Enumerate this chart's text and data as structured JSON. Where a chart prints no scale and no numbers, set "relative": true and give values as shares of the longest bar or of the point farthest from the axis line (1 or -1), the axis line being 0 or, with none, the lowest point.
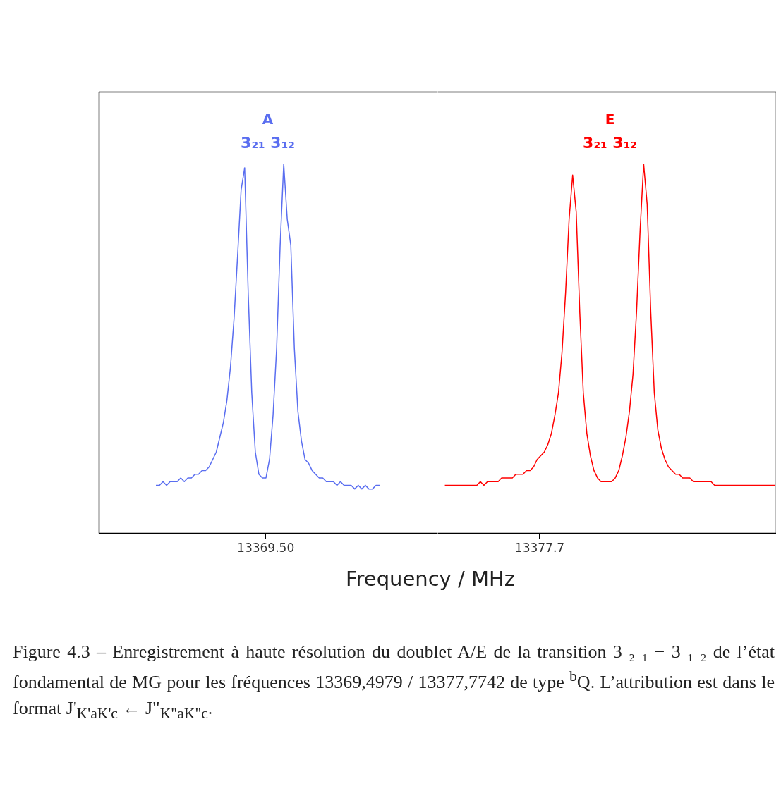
{
  "chart_data": [
    {
      "type": "line",
      "relative": true,
      "xlabel": "Frequency / MHz",
      "marker": "none",
      "line_style": "solid",
      "categories": [
        null,
        null,
        null,
        null,
        null,
        null,
        null,
        null,
        null,
        null,
        null,
        null,
        null,
        null,
        null,
        null,
        null,
        null,
        null,
        null,
        null,
        null,
        null,
        null,
        null,
        null,
        null,
        null,
        null,
        null,
        null,
        null,
        null,
        null,
        null,
        null,
        null,
        null,
        null,
        null,
        null,
        null,
        null,
        null,
        null,
        null,
        null,
        null,
        null,
        null,
        null,
        null,
        null,
        null,
        null,
        null,
        null,
        null,
        null,
        null,
        null,
        null,
        null,
        null
      ],
      "annotations": [
        "A",
        "3₂₁ 3₁₂",
        "13369.50"
      ],
      "series": [
        {
          "color": "#5a6ef0",
          "values": [
            0.13,
            0.13,
            0.14,
            0.13,
            0.14,
            0.14,
            0.14,
            0.15,
            0.14,
            0.15,
            0.15,
            0.16,
            0.16,
            0.17,
            0.17,
            0.18,
            0.2,
            0.22,
            0.26,
            0.3,
            0.36,
            0.45,
            0.58,
            0.75,
            0.93,
            0.99,
            0.65,
            0.38,
            0.22,
            0.16,
            0.15,
            0.15,
            0.2,
            0.32,
            0.5,
            0.78,
            1.0,
            0.85,
            0.78,
            0.5,
            0.33,
            0.25,
            0.2,
            0.19,
            0.17,
            0.16,
            0.15,
            0.15,
            0.14,
            0.14,
            0.14,
            0.13,
            0.14,
            0.13,
            0.13,
            0.13,
            0.12,
            0.13,
            0.12,
            0.13,
            0.12,
            0.12,
            0.13,
            0.13
          ]
        }
      ]
    },
    {
      "type": "line",
      "relative": true,
      "marker": "none",
      "line_style": "solid",
      "categories": [
        null,
        null,
        null,
        null,
        null,
        null,
        null,
        null,
        null,
        null,
        null,
        null,
        null,
        null,
        null,
        null,
        null,
        null,
        null,
        null,
        null,
        null,
        null,
        null,
        null,
        null,
        null,
        null,
        null,
        null,
        null,
        null,
        null,
        null,
        null,
        null,
        null,
        null,
        null,
        null,
        null,
        null,
        null,
        null,
        null,
        null,
        null,
        null,
        null,
        null,
        null,
        null,
        null,
        null,
        null,
        null,
        null,
        null,
        null,
        null,
        null,
        null,
        null,
        null,
        null,
        null,
        null,
        null,
        null,
        null,
        null,
        null,
        null,
        null,
        null,
        null,
        null,
        null,
        null,
        null,
        null,
        null,
        null,
        null,
        null,
        null,
        null,
        null,
        null,
        null,
        null,
        null,
        null,
        null
      ],
      "annotations": [
        "E",
        "3₂₁ 3₁₂",
        "13377.7",
        "Figure 4.3 – Enregistrement à haute résolution du doublet A/E de la transition 3 ₂ ₁ − 3 ₁ ₂ de l’état fondamental de MG pour les fréquences 13369,4979 / 13377,7742 de type $^{b}$Q. L’attribution est dans le format J'$_{K'aK'c}$ ← J\"$_{K\"aK\"c}$."
      ],
      "series": [
        {
          "color": "#ff0000",
          "values": [
            0.13,
            0.13,
            0.13,
            0.13,
            0.13,
            0.13,
            0.13,
            0.13,
            0.13,
            0.13,
            0.14,
            0.13,
            0.14,
            0.14,
            0.14,
            0.14,
            0.15,
            0.15,
            0.15,
            0.15,
            0.16,
            0.16,
            0.16,
            0.17,
            0.17,
            0.18,
            0.2,
            0.21,
            0.22,
            0.24,
            0.27,
            0.32,
            0.38,
            0.49,
            0.65,
            0.85,
            0.97,
            0.87,
            0.6,
            0.38,
            0.27,
            0.21,
            0.17,
            0.15,
            0.14,
            0.14,
            0.14,
            0.14,
            0.15,
            0.17,
            0.21,
            0.26,
            0.33,
            0.43,
            0.6,
            0.82,
            1.0,
            0.89,
            0.6,
            0.38,
            0.28,
            0.23,
            0.2,
            0.18,
            0.17,
            0.16,
            0.16,
            0.15,
            0.15,
            0.15,
            0.14,
            0.14,
            0.14,
            0.14,
            0.14,
            0.14,
            0.13,
            0.13,
            0.13,
            0.13,
            0.13,
            0.13,
            0.13,
            0.13,
            0.13,
            0.13,
            0.13,
            0.13,
            0.13,
            0.13,
            0.13,
            0.13,
            0.13,
            0.13
          ]
        }
      ]
    }
  ]
}
